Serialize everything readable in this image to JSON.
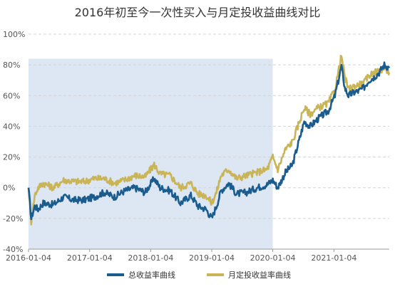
{
  "chart_data": {
    "type": "line",
    "title": "2016年初至今一次性买入与月定投收益曲线对比",
    "xlabel": "",
    "ylabel": "",
    "ylim": [
      -40,
      100
    ],
    "xlim": [
      "2016-01-04",
      "2021-12-01"
    ],
    "x_ticks": [
      "2016-01-04",
      "2017-01-04",
      "2018-01-04",
      "2019-01-04",
      "2020-01-04",
      "2021-01-04"
    ],
    "y_ticks": [
      "-40%",
      "-20%",
      "0%",
      "20%",
      "40%",
      "60%",
      "80%",
      "100%"
    ],
    "grid": true,
    "legend_position": "bottom",
    "shaded_region": {
      "x_start": "2016-01-04",
      "x_end": "2020-01-04",
      "y_start": -40,
      "y_end": 84,
      "color": "#dde7f3"
    },
    "series": [
      {
        "name": "总收益率曲线",
        "color": "#1b5c8f",
        "x": [
          "2016-01-04",
          "2016-01-20",
          "2016-02-10",
          "2016-03-01",
          "2016-04-01",
          "2016-06-01",
          "2016-08-01",
          "2016-10-01",
          "2016-12-01",
          "2017-02-01",
          "2017-04-01",
          "2017-06-01",
          "2017-08-01",
          "2017-10-01",
          "2017-12-01",
          "2018-01-25",
          "2018-03-01",
          "2018-05-01",
          "2018-07-01",
          "2018-09-01",
          "2018-10-15",
          "2018-12-01",
          "2019-01-04",
          "2019-02-01",
          "2019-03-01",
          "2019-04-15",
          "2019-06-01",
          "2019-08-01",
          "2019-10-01",
          "2019-12-01",
          "2020-01-04",
          "2020-02-03",
          "2020-03-20",
          "2020-05-01",
          "2020-07-10",
          "2020-08-15",
          "2020-10-01",
          "2020-12-01",
          "2021-01-10",
          "2021-02-18",
          "2021-03-10",
          "2021-04-01",
          "2021-05-01",
          "2021-06-01",
          "2021-07-01",
          "2021-08-01",
          "2021-09-01",
          "2021-10-01",
          "2021-11-01",
          "2021-12-01"
        ],
        "values": [
          0,
          -20,
          -12,
          -14,
          -10,
          -11,
          -6,
          -8,
          -8,
          -6,
          -3,
          -6,
          -2,
          0,
          -3,
          6,
          0,
          -2,
          -10,
          -5,
          -12,
          -14,
          -20,
          -12,
          -2,
          3,
          -4,
          -3,
          0,
          2,
          5,
          0,
          10,
          15,
          43,
          40,
          45,
          50,
          60,
          79,
          65,
          60,
          62,
          63,
          65,
          70,
          72,
          75,
          80,
          78
        ]
      },
      {
        "name": "月定投收益率曲线",
        "color": "#c9b558",
        "x": [
          "2016-01-04",
          "2016-01-20",
          "2016-02-10",
          "2016-03-01",
          "2016-04-01",
          "2016-06-01",
          "2016-08-01",
          "2016-10-01",
          "2016-12-01",
          "2017-02-01",
          "2017-04-01",
          "2017-06-01",
          "2017-08-01",
          "2017-10-01",
          "2017-12-01",
          "2018-01-25",
          "2018-03-01",
          "2018-05-01",
          "2018-07-01",
          "2018-09-01",
          "2018-10-15",
          "2018-12-01",
          "2019-01-04",
          "2019-02-01",
          "2019-03-01",
          "2019-04-15",
          "2019-06-01",
          "2019-08-01",
          "2019-10-01",
          "2019-12-01",
          "2020-01-04",
          "2020-02-03",
          "2020-03-20",
          "2020-05-01",
          "2020-07-10",
          "2020-08-15",
          "2020-10-01",
          "2020-12-01",
          "2021-01-10",
          "2021-02-18",
          "2021-03-10",
          "2021-04-01",
          "2021-05-01",
          "2021-06-01",
          "2021-07-01",
          "2021-08-01",
          "2021-09-01",
          "2021-10-01",
          "2021-11-01",
          "2021-12-01"
        ],
        "values": [
          0,
          -22,
          -5,
          0,
          3,
          0,
          5,
          4,
          4,
          6,
          6,
          3,
          5,
          8,
          7,
          15,
          9,
          8,
          0,
          3,
          -4,
          -5,
          -10,
          -3,
          8,
          12,
          6,
          8,
          10,
          12,
          20,
          12,
          25,
          30,
          52,
          48,
          52,
          55,
          64,
          86,
          72,
          64,
          66,
          67,
          68,
          73,
          75,
          76,
          78,
          75
        ]
      }
    ]
  }
}
